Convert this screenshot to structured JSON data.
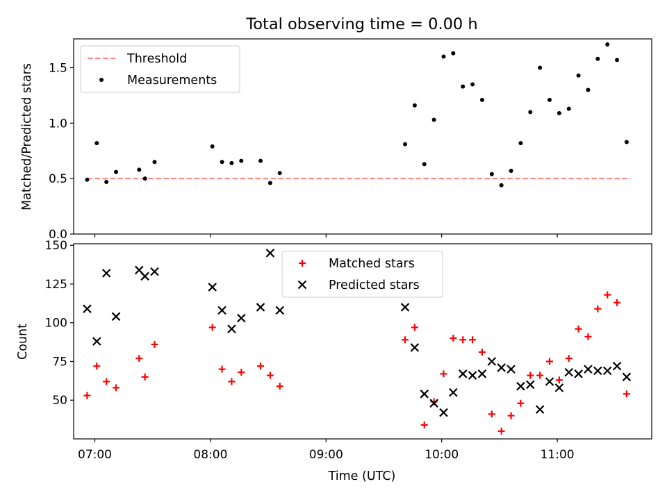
{
  "title": "Total observing time = 0.00 h",
  "chart_data": [
    {
      "type": "scatter",
      "ylabel": "Matched/Predicted stars",
      "xlabel": "",
      "xlim": [
        "06:49",
        "11:49"
      ],
      "ylim": [
        0,
        1.76
      ],
      "x_ticks": [
        "07:00",
        "08:00",
        "09:00",
        "10:00",
        "11:00"
      ],
      "y_ticks": [
        "0.0",
        "0.5",
        "1.0",
        "1.5"
      ],
      "legend": {
        "placement": "upper left",
        "entries": [
          "Threshold",
          "Measurements"
        ]
      },
      "threshold": {
        "name": "Threshold",
        "y": 0.5,
        "x_range": [
          "06:56",
          "11:38"
        ],
        "color": "#ff7f7f",
        "style": "dashed"
      },
      "series": [
        {
          "name": "Measurements",
          "marker": "dot",
          "color": "#000000",
          "points": [
            [
              "06:56",
              0.49
            ],
            [
              "07:01",
              0.82
            ],
            [
              "07:06",
              0.47
            ],
            [
              "07:11",
              0.56
            ],
            [
              "07:23",
              0.58
            ],
            [
              "07:26",
              0.5
            ],
            [
              "07:31",
              0.65
            ],
            [
              "08:01",
              0.79
            ],
            [
              "08:06",
              0.65
            ],
            [
              "08:11",
              0.64
            ],
            [
              "08:16",
              0.66
            ],
            [
              "08:26",
              0.66
            ],
            [
              "08:31",
              0.46
            ],
            [
              "08:36",
              0.55
            ],
            [
              "09:41",
              0.81
            ],
            [
              "09:46",
              1.16
            ],
            [
              "09:51",
              0.63
            ],
            [
              "09:56",
              1.03
            ],
            [
              "10:01",
              1.6
            ],
            [
              "10:06",
              1.63
            ],
            [
              "10:11",
              1.33
            ],
            [
              "10:16",
              1.35
            ],
            [
              "10:21",
              1.21
            ],
            [
              "10:26",
              0.54
            ],
            [
              "10:31",
              0.44
            ],
            [
              "10:36",
              0.57
            ],
            [
              "10:41",
              0.82
            ],
            [
              "10:46",
              1.1
            ],
            [
              "10:51",
              1.5
            ],
            [
              "10:56",
              1.21
            ],
            [
              "11:01",
              1.09
            ],
            [
              "11:06",
              1.13
            ],
            [
              "11:11",
              1.43
            ],
            [
              "11:16",
              1.3
            ],
            [
              "11:21",
              1.58
            ],
            [
              "11:26",
              1.71
            ],
            [
              "11:31",
              1.57
            ],
            [
              "11:36",
              0.83
            ]
          ]
        }
      ]
    },
    {
      "type": "scatter",
      "ylabel": "Count",
      "xlabel": "Time (UTC)",
      "xlim": [
        "06:49",
        "11:49"
      ],
      "ylim": [
        25,
        151
      ],
      "x_ticks": [
        "07:00",
        "08:00",
        "09:00",
        "10:00",
        "11:00"
      ],
      "y_ticks": [
        "50",
        "75",
        "100",
        "125",
        "150"
      ],
      "legend": {
        "placement": "upper center",
        "entries": [
          "Matched stars",
          "Predicted stars"
        ]
      },
      "series": [
        {
          "name": "Matched stars",
          "marker": "plus",
          "color": "#ff0000",
          "points": [
            [
              "06:56",
              53
            ],
            [
              "07:01",
              72
            ],
            [
              "07:06",
              62
            ],
            [
              "07:11",
              58
            ],
            [
              "07:23",
              77
            ],
            [
              "07:26",
              65
            ],
            [
              "07:31",
              86
            ],
            [
              "08:01",
              97
            ],
            [
              "08:06",
              70
            ],
            [
              "08:11",
              62
            ],
            [
              "08:16",
              68
            ],
            [
              "08:26",
              72
            ],
            [
              "08:31",
              66
            ],
            [
              "08:36",
              59
            ],
            [
              "09:41",
              89
            ],
            [
              "09:46",
              97
            ],
            [
              "09:51",
              34
            ],
            [
              "09:56",
              49
            ],
            [
              "10:01",
              67
            ],
            [
              "10:06",
              90
            ],
            [
              "10:11",
              89
            ],
            [
              "10:16",
              89
            ],
            [
              "10:21",
              81
            ],
            [
              "10:26",
              41
            ],
            [
              "10:31",
              30
            ],
            [
              "10:36",
              40
            ],
            [
              "10:41",
              48
            ],
            [
              "10:46",
              66
            ],
            [
              "10:51",
              66
            ],
            [
              "10:56",
              75
            ],
            [
              "11:01",
              63
            ],
            [
              "11:06",
              77
            ],
            [
              "11:11",
              96
            ],
            [
              "11:16",
              91
            ],
            [
              "11:21",
              109
            ],
            [
              "11:26",
              118
            ],
            [
              "11:31",
              113
            ],
            [
              "11:36",
              54
            ]
          ]
        },
        {
          "name": "Predicted stars",
          "marker": "x",
          "color": "#000000",
          "points": [
            [
              "06:56",
              109
            ],
            [
              "07:01",
              88
            ],
            [
              "07:06",
              132
            ],
            [
              "07:11",
              104
            ],
            [
              "07:23",
              134
            ],
            [
              "07:26",
              130
            ],
            [
              "07:31",
              133
            ],
            [
              "08:01",
              123
            ],
            [
              "08:06",
              108
            ],
            [
              "08:11",
              96
            ],
            [
              "08:16",
              103
            ],
            [
              "08:26",
              110
            ],
            [
              "08:31",
              145
            ],
            [
              "08:36",
              108
            ],
            [
              "09:41",
              110
            ],
            [
              "09:46",
              84
            ],
            [
              "09:51",
              54
            ],
            [
              "09:56",
              48
            ],
            [
              "10:01",
              42
            ],
            [
              "10:06",
              55
            ],
            [
              "10:11",
              67
            ],
            [
              "10:16",
              66
            ],
            [
              "10:21",
              67
            ],
            [
              "10:26",
              75
            ],
            [
              "10:31",
              71
            ],
            [
              "10:36",
              70
            ],
            [
              "10:41",
              59
            ],
            [
              "10:46",
              60
            ],
            [
              "10:51",
              44
            ],
            [
              "10:56",
              62
            ],
            [
              "11:01",
              58
            ],
            [
              "11:06",
              68
            ],
            [
              "11:11",
              67
            ],
            [
              "11:16",
              70
            ],
            [
              "11:21",
              69
            ],
            [
              "11:26",
              69
            ],
            [
              "11:31",
              72
            ],
            [
              "11:36",
              65
            ]
          ]
        }
      ]
    }
  ]
}
